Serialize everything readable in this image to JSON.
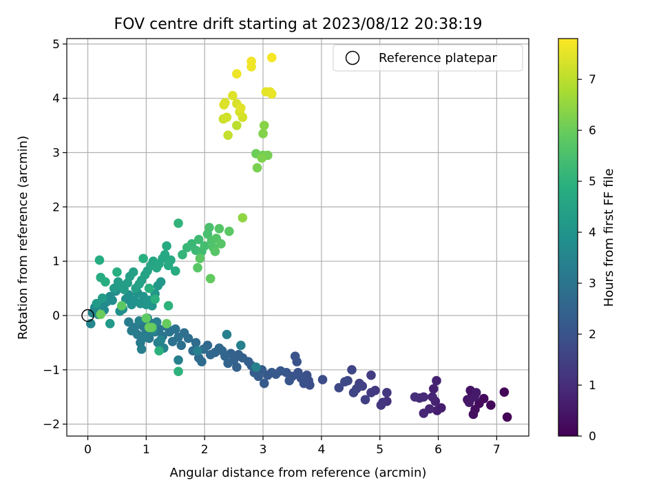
{
  "chart_data": {
    "type": "scatter",
    "title": "FOV centre drift starting at 2023/08/12 20:38:19",
    "xlabel": "Angular distance from reference (arcmin)",
    "ylabel": "Rotation from reference (arcmin)",
    "xlim": [
      -0.36,
      7.55
    ],
    "ylim": [
      -2.22,
      5.1
    ],
    "xticks": [
      0,
      1,
      2,
      3,
      4,
      5,
      6,
      7
    ],
    "yticks": [
      -2,
      -1,
      0,
      1,
      2,
      3,
      4,
      5
    ],
    "grid": true,
    "legend": {
      "placement": "top-right",
      "entries": [
        "Reference platepar"
      ]
    },
    "reference_point": {
      "x": 0,
      "y": 0
    },
    "colorbar": {
      "label": "Hours from first FF file",
      "range": [
        0,
        7.8
      ],
      "ticks": [
        0,
        1,
        2,
        3,
        4,
        5,
        6,
        7
      ],
      "colormap": "viridis"
    },
    "points": [
      {
        "x": 7.18,
        "y": -1.87,
        "h": 0.05
      },
      {
        "x": 7.13,
        "y": -1.41,
        "h": 0.1
      },
      {
        "x": 6.9,
        "y": -1.65,
        "h": 0.15
      },
      {
        "x": 6.78,
        "y": -1.53,
        "h": 0.2
      },
      {
        "x": 6.7,
        "y": -1.62,
        "h": 0.25
      },
      {
        "x": 6.63,
        "y": -1.73,
        "h": 0.3
      },
      {
        "x": 6.6,
        "y": -1.82,
        "h": 0.3
      },
      {
        "x": 6.58,
        "y": -1.45,
        "h": 0.35
      },
      {
        "x": 6.55,
        "y": -1.38,
        "h": 0.4
      },
      {
        "x": 6.5,
        "y": -1.55,
        "h": 0.45
      },
      {
        "x": 6.53,
        "y": -1.6,
        "h": 0.5
      },
      {
        "x": 6.62,
        "y": -1.5,
        "h": 0.55
      },
      {
        "x": 6.65,
        "y": -1.42,
        "h": 0.55
      },
      {
        "x": 6.05,
        "y": -1.7,
        "h": 0.6
      },
      {
        "x": 5.98,
        "y": -1.75,
        "h": 0.65
      },
      {
        "x": 5.95,
        "y": -1.58,
        "h": 0.7
      },
      {
        "x": 5.92,
        "y": -1.35,
        "h": 0.72
      },
      {
        "x": 5.97,
        "y": -1.2,
        "h": 0.75
      },
      {
        "x": 5.9,
        "y": -1.5,
        "h": 0.8
      },
      {
        "x": 5.85,
        "y": -1.72,
        "h": 0.82
      },
      {
        "x": 5.75,
        "y": -1.8,
        "h": 0.85
      },
      {
        "x": 5.75,
        "y": -1.5,
        "h": 0.9
      },
      {
        "x": 5.68,
        "y": -1.52,
        "h": 0.95
      },
      {
        "x": 5.6,
        "y": -1.5,
        "h": 1.0
      },
      {
        "x": 5.12,
        "y": -1.58,
        "h": 1.1
      },
      {
        "x": 5.05,
        "y": -1.6,
        "h": 1.15
      },
      {
        "x": 5.02,
        "y": -1.65,
        "h": 1.2
      },
      {
        "x": 5.12,
        "y": -1.42,
        "h": 1.25
      },
      {
        "x": 4.92,
        "y": -1.38,
        "h": 1.3
      },
      {
        "x": 4.85,
        "y": -1.42,
        "h": 1.35
      },
      {
        "x": 4.85,
        "y": -1.1,
        "h": 1.4
      },
      {
        "x": 4.75,
        "y": -1.55,
        "h": 1.45
      },
      {
        "x": 4.7,
        "y": -1.3,
        "h": 1.5
      },
      {
        "x": 4.65,
        "y": -1.25,
        "h": 1.5
      },
      {
        "x": 4.6,
        "y": -1.35,
        "h": 1.55
      },
      {
        "x": 4.55,
        "y": -1.42,
        "h": 1.6
      },
      {
        "x": 4.52,
        "y": -1.0,
        "h": 1.62
      },
      {
        "x": 4.45,
        "y": -1.2,
        "h": 1.65
      },
      {
        "x": 4.4,
        "y": -1.22,
        "h": 1.7
      },
      {
        "x": 4.3,
        "y": -1.33,
        "h": 1.72
      },
      {
        "x": 4.02,
        "y": -1.18,
        "h": 1.8
      },
      {
        "x": 3.8,
        "y": -1.28,
        "h": 1.85
      },
      {
        "x": 3.78,
        "y": -1.2,
        "h": 1.88
      },
      {
        "x": 3.75,
        "y": -1.1,
        "h": 1.9
      },
      {
        "x": 3.7,
        "y": -1.25,
        "h": 1.92
      },
      {
        "x": 3.65,
        "y": -1.15,
        "h": 1.95
      },
      {
        "x": 3.6,
        "y": -1.05,
        "h": 1.98
      },
      {
        "x": 3.58,
        "y": -0.85,
        "h": 2.0
      },
      {
        "x": 3.55,
        "y": -0.75,
        "h": 2.02
      },
      {
        "x": 3.5,
        "y": -1.12,
        "h": 2.05
      },
      {
        "x": 3.45,
        "y": -1.2,
        "h": 2.08
      },
      {
        "x": 3.4,
        "y": -1.05,
        "h": 2.1
      },
      {
        "x": 3.3,
        "y": -1.02,
        "h": 2.12
      },
      {
        "x": 3.22,
        "y": -1.08,
        "h": 2.15
      },
      {
        "x": 3.15,
        "y": -1.05,
        "h": 2.18
      },
      {
        "x": 3.08,
        "y": -1.1,
        "h": 2.2
      },
      {
        "x": 3.02,
        "y": -1.25,
        "h": 2.22
      },
      {
        "x": 2.98,
        "y": -1.0,
        "h": 2.25
      },
      {
        "x": 2.92,
        "y": -1.12,
        "h": 2.28
      },
      {
        "x": 2.85,
        "y": -1.05,
        "h": 2.3
      },
      {
        "x": 2.8,
        "y": -0.92,
        "h": 2.32
      },
      {
        "x": 2.75,
        "y": -0.85,
        "h": 2.35
      },
      {
        "x": 2.65,
        "y": -0.78,
        "h": 2.38
      },
      {
        "x": 2.58,
        "y": -0.72,
        "h": 2.4
      },
      {
        "x": 2.55,
        "y": -0.95,
        "h": 2.42
      },
      {
        "x": 2.5,
        "y": -0.82,
        "h": 2.45
      },
      {
        "x": 2.45,
        "y": -0.7,
        "h": 2.48
      },
      {
        "x": 2.4,
        "y": -0.88,
        "h": 2.5
      },
      {
        "x": 2.35,
        "y": -0.75,
        "h": 2.52
      },
      {
        "x": 2.3,
        "y": -0.65,
        "h": 2.55
      },
      {
        "x": 2.25,
        "y": -0.6,
        "h": 2.58
      },
      {
        "x": 2.18,
        "y": -0.68,
        "h": 2.6
      },
      {
        "x": 2.1,
        "y": -0.72,
        "h": 2.62
      },
      {
        "x": 2.05,
        "y": -0.55,
        "h": 2.65
      },
      {
        "x": 1.98,
        "y": -0.62,
        "h": 2.68
      },
      {
        "x": 1.95,
        "y": -0.85,
        "h": 2.7
      },
      {
        "x": 1.9,
        "y": -0.78,
        "h": 2.72
      },
      {
        "x": 1.85,
        "y": -0.5,
        "h": 2.75
      },
      {
        "x": 1.8,
        "y": -0.65,
        "h": 2.78
      },
      {
        "x": 1.72,
        "y": -0.42,
        "h": 2.8
      },
      {
        "x": 1.65,
        "y": -0.32,
        "h": 2.82
      },
      {
        "x": 1.6,
        "y": -0.55,
        "h": 2.85
      },
      {
        "x": 1.55,
        "y": -0.4,
        "h": 2.88
      },
      {
        "x": 1.5,
        "y": -0.25,
        "h": 2.9
      },
      {
        "x": 1.45,
        "y": -0.48,
        "h": 2.92
      },
      {
        "x": 1.4,
        "y": -0.3,
        "h": 2.95
      },
      {
        "x": 1.35,
        "y": -0.2,
        "h": 2.98
      },
      {
        "x": 1.28,
        "y": -0.38,
        "h": 3.0
      },
      {
        "x": 1.22,
        "y": -0.25,
        "h": 3.02
      },
      {
        "x": 1.15,
        "y": -0.3,
        "h": 3.05
      },
      {
        "x": 1.1,
        "y": -0.15,
        "h": 3.08
      },
      {
        "x": 1.05,
        "y": -0.42,
        "h": 3.1
      },
      {
        "x": 1.0,
        "y": -0.3,
        "h": 3.12
      },
      {
        "x": 0.95,
        "y": -0.2,
        "h": 3.15
      },
      {
        "x": 0.9,
        "y": -0.5,
        "h": 3.18
      },
      {
        "x": 0.85,
        "y": -0.35,
        "h": 3.2
      },
      {
        "x": 0.8,
        "y": -0.22,
        "h": 3.22
      },
      {
        "x": 0.75,
        "y": -0.28,
        "h": 3.25
      },
      {
        "x": 0.7,
        "y": -0.12,
        "h": 3.28
      },
      {
        "x": 0.92,
        "y": -0.62,
        "h": 3.3
      },
      {
        "x": 0.98,
        "y": -0.4,
        "h": 3.3
      },
      {
        "x": 1.02,
        "y": -0.05,
        "h": 3.32
      },
      {
        "x": 1.18,
        "y": -0.12,
        "h": 3.32
      },
      {
        "x": 1.55,
        "y": -0.82,
        "h": 3.35
      },
      {
        "x": 1.88,
        "y": -0.65,
        "h": 3.35
      },
      {
        "x": 2.38,
        "y": -0.35,
        "h": 3.38
      },
      {
        "x": 2.62,
        "y": -0.55,
        "h": 3.38
      },
      {
        "x": 2.88,
        "y": -0.95,
        "h": 3.4
      },
      {
        "x": 1.2,
        "y": -0.5,
        "h": 3.4
      },
      {
        "x": 0.88,
        "y": -0.1,
        "h": 3.42
      },
      {
        "x": 1.05,
        "y": -0.2,
        "h": 3.45
      },
      {
        "x": 1.3,
        "y": -0.6,
        "h": 3.45
      },
      {
        "x": 1.25,
        "y": -0.45,
        "h": 3.48
      },
      {
        "x": 1.12,
        "y": -0.28,
        "h": 3.5
      },
      {
        "x": 0.05,
        "y": -0.15,
        "h": 3.55
      },
      {
        "x": 0.08,
        "y": 0.05,
        "h": 3.58
      },
      {
        "x": 0.12,
        "y": 0.15,
        "h": 3.6
      },
      {
        "x": 0.18,
        "y": 0.02,
        "h": 3.62
      },
      {
        "x": 0.22,
        "y": 0.2,
        "h": 3.65
      },
      {
        "x": 0.28,
        "y": 0.1,
        "h": 3.68
      },
      {
        "x": 0.32,
        "y": 0.25,
        "h": 3.7
      },
      {
        "x": 0.38,
        "y": 0.35,
        "h": 3.72
      },
      {
        "x": 0.42,
        "y": 0.28,
        "h": 3.75
      },
      {
        "x": 0.48,
        "y": 0.45,
        "h": 3.78
      },
      {
        "x": 0.55,
        "y": 0.08,
        "h": 3.8
      },
      {
        "x": 0.6,
        "y": 0.12,
        "h": 3.82
      },
      {
        "x": 0.65,
        "y": 0.3,
        "h": 3.85
      },
      {
        "x": 0.7,
        "y": 0.38,
        "h": 3.88
      },
      {
        "x": 0.75,
        "y": 0.2,
        "h": 3.9
      },
      {
        "x": 0.8,
        "y": 0.28,
        "h": 3.92
      },
      {
        "x": 0.85,
        "y": 0.42,
        "h": 3.95
      },
      {
        "x": 0.9,
        "y": 0.22,
        "h": 3.98
      },
      {
        "x": 0.95,
        "y": 0.35,
        "h": 4.0
      },
      {
        "x": 1.0,
        "y": 0.2,
        "h": 4.02
      },
      {
        "x": 1.05,
        "y": 0.28,
        "h": 4.05
      },
      {
        "x": 1.1,
        "y": 0.18,
        "h": 4.08
      },
      {
        "x": 1.15,
        "y": 0.4,
        "h": 4.1
      },
      {
        "x": 1.2,
        "y": 0.55,
        "h": 4.12
      },
      {
        "x": 1.25,
        "y": 0.62,
        "h": 4.15
      },
      {
        "x": 0.38,
        "y": -0.15,
        "h": 4.18
      },
      {
        "x": 0.15,
        "y": 0.22,
        "h": 4.2
      },
      {
        "x": 0.25,
        "y": 0.32,
        "h": 4.22
      },
      {
        "x": 0.45,
        "y": 0.5,
        "h": 4.25
      },
      {
        "x": 0.52,
        "y": 0.62,
        "h": 4.28
      },
      {
        "x": 0.58,
        "y": 0.55,
        "h": 4.3
      },
      {
        "x": 0.62,
        "y": 0.48,
        "h": 4.32
      },
      {
        "x": 0.68,
        "y": 0.6,
        "h": 4.35
      },
      {
        "x": 0.72,
        "y": 0.72,
        "h": 4.38
      },
      {
        "x": 0.78,
        "y": 0.8,
        "h": 4.4
      },
      {
        "x": 0.82,
        "y": 0.5,
        "h": 4.42
      },
      {
        "x": 0.88,
        "y": 0.58,
        "h": 4.45
      },
      {
        "x": 0.92,
        "y": 0.65,
        "h": 4.48
      },
      {
        "x": 0.98,
        "y": 0.75,
        "h": 4.5
      },
      {
        "x": 1.02,
        "y": 0.82,
        "h": 4.52
      },
      {
        "x": 1.08,
        "y": 0.92,
        "h": 4.55
      },
      {
        "x": 1.12,
        "y": 1.0,
        "h": 4.58
      },
      {
        "x": 1.18,
        "y": 0.88,
        "h": 4.6
      },
      {
        "x": 1.22,
        "y": 0.95,
        "h": 4.62
      },
      {
        "x": 1.28,
        "y": 1.05,
        "h": 4.65
      },
      {
        "x": 1.32,
        "y": 1.12,
        "h": 4.68
      },
      {
        "x": 1.35,
        "y": 1.28,
        "h": 4.7
      },
      {
        "x": 1.38,
        "y": 0.92,
        "h": 4.72
      },
      {
        "x": 1.42,
        "y": 1.02,
        "h": 4.75
      },
      {
        "x": 1.5,
        "y": 0.82,
        "h": 4.78
      },
      {
        "x": 0.2,
        "y": 1.02,
        "h": 4.8
      },
      {
        "x": 0.22,
        "y": 0.7,
        "h": 4.82
      },
      {
        "x": 0.3,
        "y": 0.62,
        "h": 4.85
      },
      {
        "x": 0.5,
        "y": 0.8,
        "h": 4.88
      },
      {
        "x": 0.95,
        "y": 1.05,
        "h": 4.9
      },
      {
        "x": 1.05,
        "y": 0.5,
        "h": 4.92
      },
      {
        "x": 1.15,
        "y": 0.3,
        "h": 4.95
      },
      {
        "x": 1.22,
        "y": -0.65,
        "h": 4.95
      },
      {
        "x": 1.55,
        "y": -1.03,
        "h": 4.98
      },
      {
        "x": 1.38,
        "y": 0.18,
        "h": 5.0
      },
      {
        "x": 1.55,
        "y": 1.7,
        "h": 5.05
      },
      {
        "x": 1.62,
        "y": 1.12,
        "h": 5.1
      },
      {
        "x": 1.7,
        "y": 1.25,
        "h": 5.15
      },
      {
        "x": 1.78,
        "y": 1.32,
        "h": 5.2
      },
      {
        "x": 1.85,
        "y": 1.2,
        "h": 5.25
      },
      {
        "x": 1.9,
        "y": 1.4,
        "h": 5.3
      },
      {
        "x": 1.95,
        "y": 1.18,
        "h": 5.35
      },
      {
        "x": 2.0,
        "y": 1.28,
        "h": 5.4
      },
      {
        "x": 2.05,
        "y": 1.5,
        "h": 5.45
      },
      {
        "x": 2.08,
        "y": 1.62,
        "h": 5.5
      },
      {
        "x": 2.12,
        "y": 1.38,
        "h": 5.55
      },
      {
        "x": 2.15,
        "y": 1.25,
        "h": 5.6
      },
      {
        "x": 2.2,
        "y": 1.42,
        "h": 5.65
      },
      {
        "x": 2.25,
        "y": 1.6,
        "h": 5.68
      },
      {
        "x": 2.28,
        "y": 1.32,
        "h": 5.7
      },
      {
        "x": 2.18,
        "y": 1.18,
        "h": 5.72
      },
      {
        "x": 1.88,
        "y": 0.88,
        "h": 5.75
      },
      {
        "x": 1.92,
        "y": 1.05,
        "h": 5.78
      },
      {
        "x": 2.42,
        "y": 1.55,
        "h": 5.8
      },
      {
        "x": 0.58,
        "y": 0.18,
        "h": 5.82
      },
      {
        "x": 1.1,
        "y": -0.22,
        "h": 5.85
      },
      {
        "x": 1.0,
        "y": -0.05,
        "h": 5.85
      },
      {
        "x": 2.1,
        "y": 0.68,
        "h": 5.9
      },
      {
        "x": 1.35,
        "y": -0.15,
        "h": 5.95
      },
      {
        "x": 0.22,
        "y": 0.02,
        "h": 5.98
      },
      {
        "x": 1.05,
        "y": -0.22,
        "h": 6.0
      },
      {
        "x": 2.88,
        "y": 2.98,
        "h": 6.05
      },
      {
        "x": 3.0,
        "y": 2.95,
        "h": 6.1
      },
      {
        "x": 3.08,
        "y": 2.95,
        "h": 6.15
      },
      {
        "x": 2.9,
        "y": 2.72,
        "h": 6.2
      },
      {
        "x": 2.98,
        "y": 2.9,
        "h": 6.25
      },
      {
        "x": 3.0,
        "y": 3.35,
        "h": 6.3
      },
      {
        "x": 3.02,
        "y": 3.5,
        "h": 6.35
      },
      {
        "x": 2.65,
        "y": 1.8,
        "h": 6.45
      },
      {
        "x": 2.55,
        "y": 3.5,
        "h": 7.0
      },
      {
        "x": 2.4,
        "y": 3.32,
        "h": 7.1
      },
      {
        "x": 2.32,
        "y": 3.62,
        "h": 7.2
      },
      {
        "x": 2.38,
        "y": 3.65,
        "h": 7.25
      },
      {
        "x": 2.65,
        "y": 3.65,
        "h": 7.3
      },
      {
        "x": 2.6,
        "y": 3.75,
        "h": 7.32
      },
      {
        "x": 2.55,
        "y": 3.9,
        "h": 7.35
      },
      {
        "x": 2.35,
        "y": 3.92,
        "h": 7.38
      },
      {
        "x": 2.33,
        "y": 3.88,
        "h": 7.4
      },
      {
        "x": 2.48,
        "y": 4.05,
        "h": 7.42
      },
      {
        "x": 2.62,
        "y": 3.82,
        "h": 7.45
      },
      {
        "x": 3.05,
        "y": 4.12,
        "h": 7.5
      },
      {
        "x": 3.12,
        "y": 4.12,
        "h": 7.52
      },
      {
        "x": 3.15,
        "y": 4.08,
        "h": 7.55
      },
      {
        "x": 2.55,
        "y": 4.45,
        "h": 7.6
      },
      {
        "x": 2.8,
        "y": 4.58,
        "h": 7.62
      },
      {
        "x": 2.8,
        "y": 4.68,
        "h": 7.65
      },
      {
        "x": 3.15,
        "y": 4.75,
        "h": 7.7
      }
    ]
  }
}
